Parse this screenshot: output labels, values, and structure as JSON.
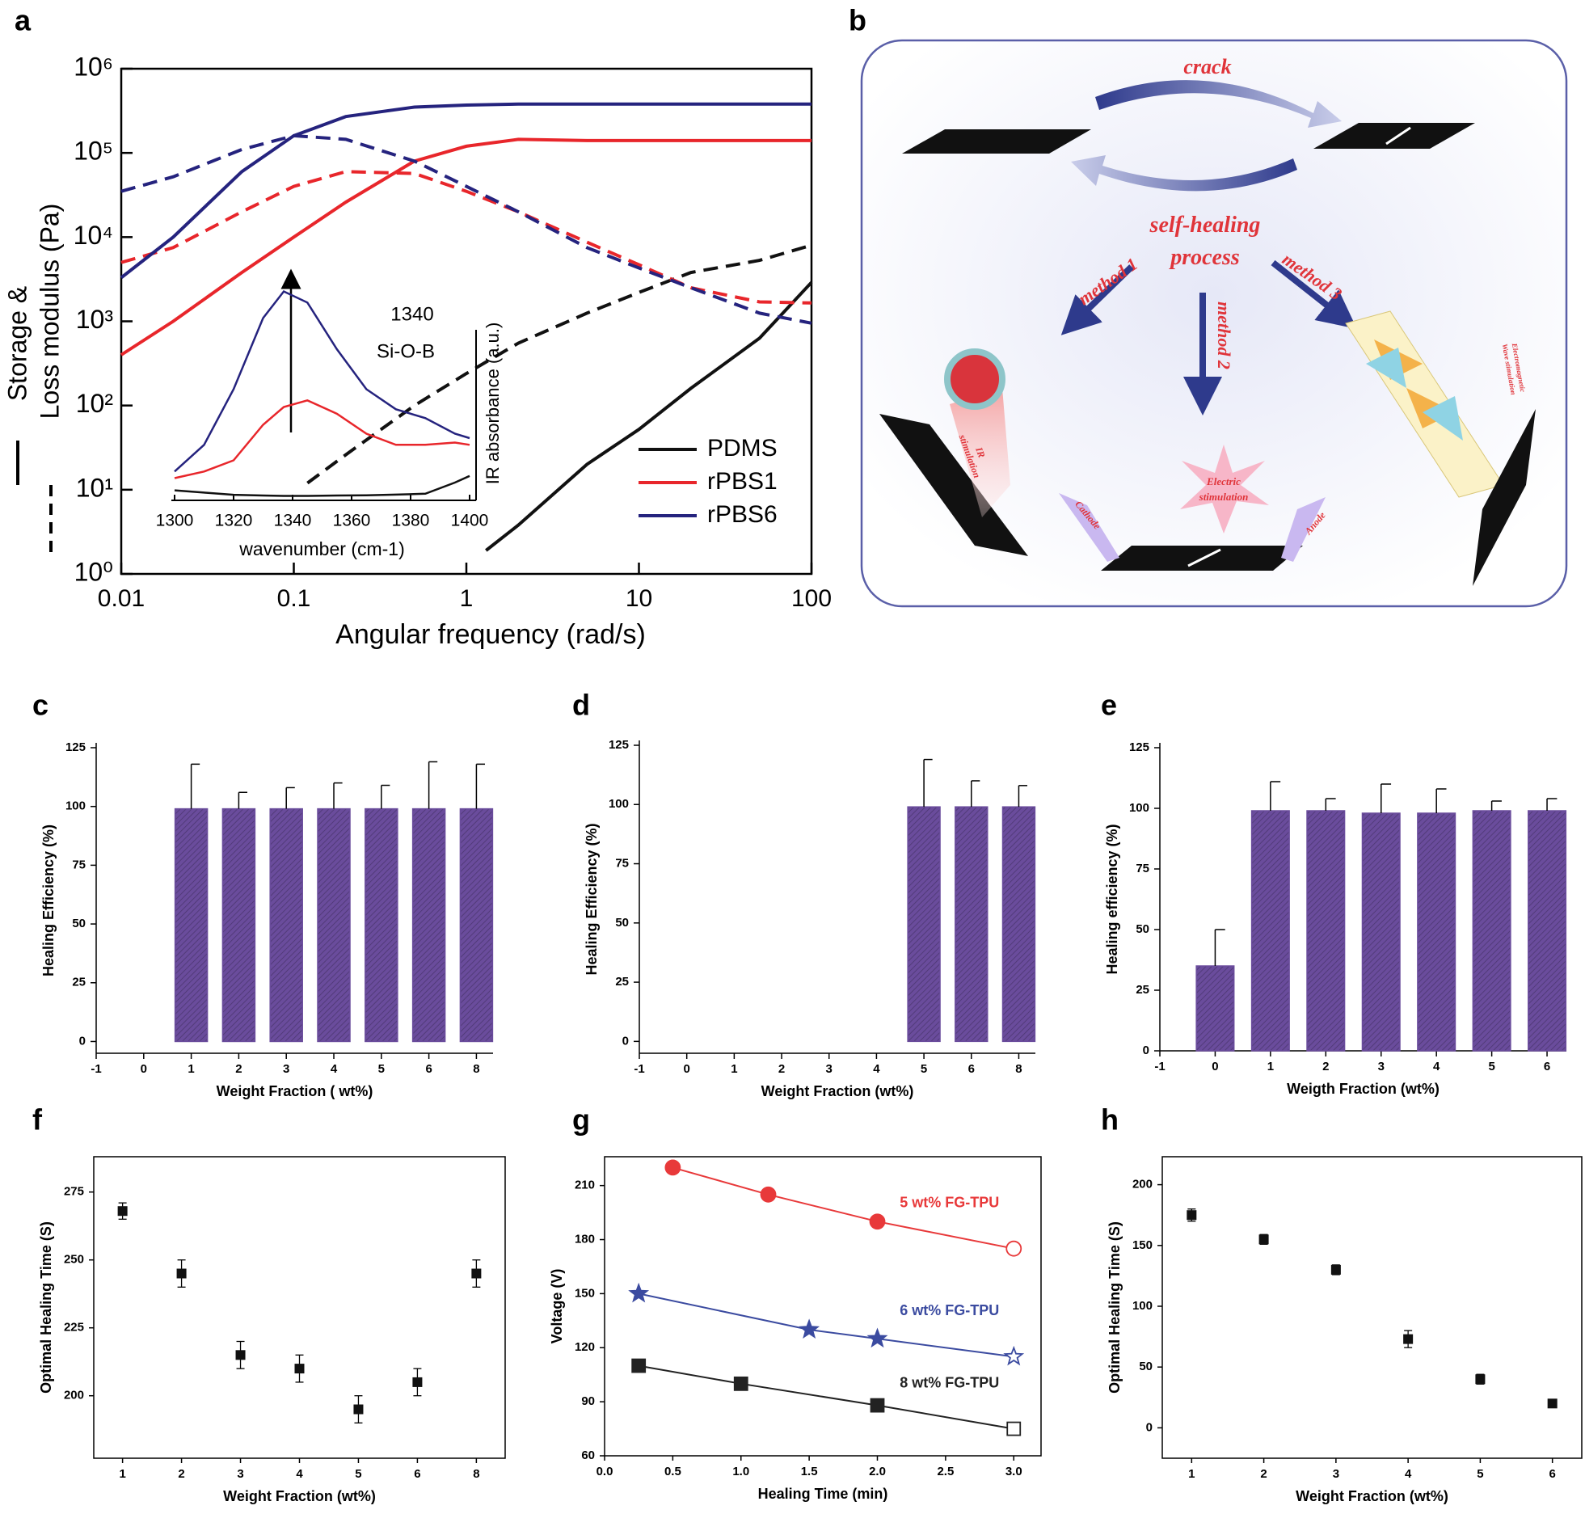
{
  "chart_data": [
    {
      "panel": "a",
      "type": "loglog",
      "xscale": "log",
      "yscale": "log",
      "xlim": [
        0.01,
        100
      ],
      "ylim": [
        1,
        1000000
      ],
      "xticks": [
        0.01,
        0.1,
        1,
        10,
        100
      ],
      "yticks": [
        {
          "value": 1,
          "label": "10⁰"
        },
        {
          "value": 10,
          "label": "10¹"
        },
        {
          "value": 100,
          "label": "10²"
        },
        {
          "value": 1000,
          "label": "10³"
        },
        {
          "value": 10000,
          "label": "10⁴"
        },
        {
          "value": 100000,
          "label": "10⁵"
        },
        {
          "value": 1000000,
          "label": "10⁶"
        }
      ],
      "xlabel": "Angular frequency (rad/s)",
      "ylabel": [
        "Storage &",
        "Loss modulus (Pa)"
      ],
      "legend": "lower right",
      "series": [
        {
          "name": "PDMS",
          "color": "#111111",
          "storage": {
            "x": [
              1.3,
              2,
              5,
              10,
              20,
              50,
              100
            ],
            "values": [
              1.9,
              3.8,
              20,
              52,
              160,
              630,
              2900
            ]
          },
          "loss": {
            "x": [
              0.12,
              0.2,
              0.5,
              1,
              2,
              5,
              10,
              20,
              50,
              100
            ],
            "values": [
              12,
              26,
              100,
              240,
              550,
              1250,
              2200,
              3800,
              5300,
              8000
            ]
          }
        },
        {
          "name": "rPBS1",
          "color": "#e8262b",
          "storage": {
            "x": [
              0.01,
              0.02,
              0.05,
              0.1,
              0.2,
              0.5,
              1,
              2,
              5,
              10,
              20,
              50,
              100
            ],
            "values": [
              400,
              1000,
              3800,
              10000,
              26000,
              80000,
              120000,
              145000,
              140000,
              140000,
              140000,
              140000,
              140000
            ]
          },
          "loss": {
            "x": [
              0.01,
              0.02,
              0.05,
              0.1,
              0.2,
              0.5,
              1,
              2,
              5,
              10,
              20,
              50,
              100
            ],
            "values": [
              5000,
              7500,
              20000,
              40000,
              60000,
              57000,
              35000,
              20000,
              8700,
              4700,
              2500,
              1700,
              1650
            ]
          }
        },
        {
          "name": "rPBS6",
          "color": "#25237e",
          "storage": {
            "x": [
              0.01,
              0.02,
              0.05,
              0.1,
              0.2,
              0.5,
              1,
              2,
              5,
              10,
              20,
              50,
              100
            ],
            "values": [
              3300,
              10000,
              60000,
              160000,
              270000,
              350000,
              370000,
              380000,
              380000,
              380000,
              380000,
              380000,
              380000
            ]
          },
          "loss": {
            "x": [
              0.01,
              0.02,
              0.05,
              0.1,
              0.2,
              0.5,
              1,
              2,
              5,
              10,
              20,
              50,
              100
            ],
            "values": [
              35000,
              52000,
              110000,
              160000,
              145000,
              80000,
              40000,
              20000,
              7500,
              4300,
              2500,
              1250,
              950
            ]
          }
        }
      ],
      "inset": {
        "type": "line",
        "xlim": [
          1300,
          1400
        ],
        "ylim": [
          0,
          1
        ],
        "xticks": [
          1300,
          1320,
          1340,
          1360,
          1380,
          1400
        ],
        "xlabel": "wavenumber (cm-1)",
        "ylabel": "IR absorbance (a.u.)",
        "annotations": [
          "1340",
          "Si-O-B"
        ],
        "x": [
          1300,
          1310,
          1320,
          1330,
          1337,
          1345,
          1355,
          1365,
          1375,
          1385,
          1395,
          1400
        ],
        "series": [
          {
            "color": "#111111",
            "values": [
              0.045,
              0.035,
              0.025,
              0.022,
              0.02,
              0.02,
              0.022,
              0.023,
              0.026,
              0.03,
              0.08,
              0.11
            ]
          },
          {
            "color": "#e8262b",
            "values": [
              0.1,
              0.13,
              0.18,
              0.34,
              0.42,
              0.45,
              0.39,
              0.3,
              0.25,
              0.25,
              0.26,
              0.25
            ]
          },
          {
            "color": "#25237e",
            "values": [
              0.13,
              0.25,
              0.5,
              0.82,
              0.94,
              0.89,
              0.68,
              0.5,
              0.41,
              0.37,
              0.3,
              0.28
            ]
          }
        ]
      }
    },
    {
      "panel": "c",
      "type": "bar",
      "color": "#6a4c9c",
      "ylim": [
        -5,
        125
      ],
      "yticks": [
        0,
        25,
        50,
        75,
        100,
        125
      ],
      "categories": [
        "-1",
        "0",
        "1",
        "2",
        "3",
        "4",
        "5",
        "6",
        "8"
      ],
      "values": [
        null,
        0,
        99,
        99,
        99,
        99,
        99,
        99,
        99
      ],
      "errors": [
        null,
        null,
        19,
        7,
        9,
        11,
        10,
        20,
        19
      ],
      "xlabel": "Weight Fraction ( wt%)",
      "ylabel": "Healing Efficiency (%)"
    },
    {
      "panel": "d",
      "type": "bar",
      "color": "#6a4c9c",
      "ylim": [
        -5,
        125
      ],
      "yticks": [
        0,
        25,
        50,
        75,
        100,
        125
      ],
      "categories": [
        "-1",
        "0",
        "1",
        "2",
        "3",
        "4",
        "5",
        "6",
        "8"
      ],
      "values": [
        null,
        0,
        0,
        0,
        0,
        0,
        99,
        99,
        99
      ],
      "errors": [
        null,
        null,
        null,
        null,
        null,
        null,
        20,
        11,
        9
      ],
      "xlabel": "Weight Fraction (wt%)",
      "ylabel": "Healing Efficiency (%)"
    },
    {
      "panel": "e",
      "type": "bar",
      "color": "#6a4c9c",
      "ylim": [
        0,
        125
      ],
      "yticks": [
        0,
        25,
        50,
        75,
        100,
        125
      ],
      "categories": [
        "-1",
        "0",
        "1",
        "2",
        "3",
        "4",
        "5",
        "6"
      ],
      "values": [
        null,
        35,
        99,
        99,
        98,
        98,
        99,
        99
      ],
      "errors": [
        null,
        15,
        12,
        5,
        12,
        10,
        4,
        5
      ],
      "xlabel": "Weigth Fraction (wt%)",
      "ylabel": "Healing efficiency (%)"
    },
    {
      "panel": "f",
      "type": "errorscatter",
      "color": "#111111",
      "ylim": [
        177,
        288
      ],
      "yticks": [
        200,
        225,
        250,
        275
      ],
      "categories": [
        "1",
        "2",
        "3",
        "4",
        "5",
        "6",
        "8"
      ],
      "values": [
        268,
        245,
        215,
        210,
        195,
        205,
        245
      ],
      "errors": [
        3,
        5,
        5,
        5,
        5,
        5,
        5
      ],
      "xlabel": "Weight Fraction (wt%)",
      "ylabel": "Optimal Healing Time (S)"
    },
    {
      "panel": "g",
      "type": "line",
      "xlim": [
        0,
        3.2
      ],
      "ylim": [
        60,
        226
      ],
      "xticks": [
        {
          "value": 0,
          "label": "0.0"
        },
        0.5,
        {
          "value": 1,
          "label": "1.0"
        },
        1.5,
        {
          "value": 2,
          "label": "2.0"
        },
        2.5,
        {
          "value": 3,
          "label": "3.0"
        }
      ],
      "yticks": [
        60,
        90,
        120,
        150,
        180,
        210
      ],
      "last_marker": "open",
      "xlabel": "Healing Time (min)",
      "ylabel": "Voltage (V)",
      "series": [
        {
          "name": "5 wt% FG-TPU",
          "color": "#e8393a",
          "marker": "circle",
          "x": [
            0.5,
            1.2,
            2,
            3
          ],
          "values": [
            220,
            205,
            190,
            175
          ]
        },
        {
          "name": "6 wt% FG-TPU",
          "color": "#3b4ba0",
          "marker": "star",
          "x": [
            0.25,
            1.5,
            2,
            3
          ],
          "values": [
            150,
            130,
            125,
            115
          ]
        },
        {
          "name": "8 wt% FG-TPU",
          "color": "#222222",
          "marker": "square",
          "x": [
            0.25,
            1,
            2,
            3
          ],
          "values": [
            110,
            100,
            88,
            75
          ]
        }
      ]
    },
    {
      "panel": "h",
      "type": "errorscatter",
      "color": "#111111",
      "ylim": [
        -25,
        223
      ],
      "yticks": [
        0,
        50,
        100,
        150,
        200
      ],
      "categories": [
        "1",
        "2",
        "3",
        "4",
        "5",
        "6"
      ],
      "values": [
        175,
        155,
        130,
        73,
        40,
        20
      ],
      "errors": [
        5,
        4,
        4,
        7,
        4,
        2
      ],
      "xlabel": "Weight Fraction (wt%)",
      "ylabel": "Optimal Healing Time (S)"
    }
  ],
  "diagram": {
    "panel": "b",
    "crack": "crack",
    "center": [
      "self-healing",
      "process"
    ],
    "methods": [
      "method 1",
      "method 2",
      "method 3"
    ],
    "ir": [
      "IR",
      "stimulation"
    ],
    "electric": [
      "Electric",
      "stimulation"
    ],
    "cathode": "Cathode",
    "anode": "Anode",
    "wave": [
      "Electromagnetic",
      "Wave stimulation"
    ]
  }
}
